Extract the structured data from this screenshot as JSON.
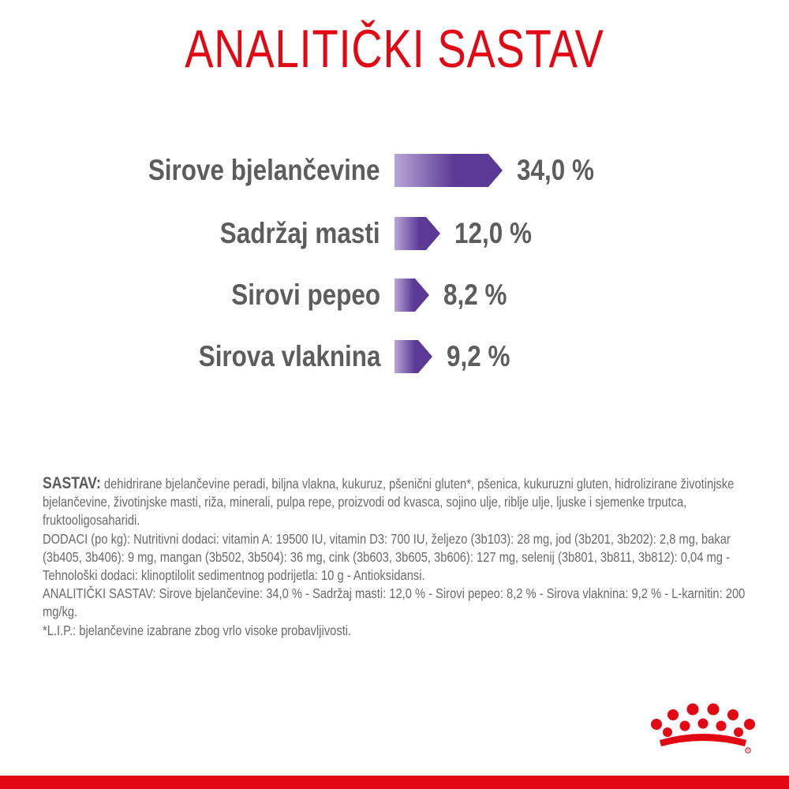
{
  "title": "ANALITIČKI SASTAV",
  "colors": {
    "title": "#e30613",
    "text": "#5d5d5d",
    "bar_start": "#b8a6d6",
    "bar_end": "#5b3a96",
    "footer_bar": "#e30613"
  },
  "analysis": [
    {
      "label": "Sirove bjelančevine",
      "value": "34,0 %",
      "percent": 34.0
    },
    {
      "label": "Sadržaj masti",
      "value": "12,0 %",
      "percent": 12.0
    },
    {
      "label": "Sirovi pepeo",
      "value": "8,2 %",
      "percent": 8.2
    },
    {
      "label": "Sirova vlaknina",
      "value": "9,2 %",
      "percent": 9.2
    }
  ],
  "composition": {
    "heading": "SASTAV:",
    "ingredients": "dehidrirane bjelančevine peradi, biljna vlakna, kukuruz, pšenični gluten*, pšenica, kukuruzni gluten, hidrolizirane životinjske bjelančevine, životinjske masti, riža, minerali, pulpa repe, proizvodi od kvasca, sojino ulje, riblje ulje, ljuske i sjemenke trputca, fruktooligosaharidi.",
    "additives": "DODACI (po kg): Nutritivni dodaci: vitamin A: 19500 IU, vitamin D3: 700 IU, željezo (3b103): 28 mg, jod (3b201, 3b202): 2,8 mg, bakar (3b405, 3b406): 9 mg, mangan (3b502, 3b504): 36 mg, cink (3b603, 3b605, 3b606): 127 mg, selenij (3b801, 3b811, 3b812): 0,04 mg - Tehnološki dodaci: klinoptilolit sedimentnog podrijetla: 10 g - Antioksidansi.",
    "analytical": "ANALITIČKI SASTAV: Sirove bjelančevine: 34,0 % - Sadržaj masti: 12,0 % - Sirovi pepeo: 8,2 % - Sirova vlaknina: 9,2 % - L-karnitin: 200 mg/kg.",
    "footnote": "*L.I.P.: bjelančevine izabrane zbog vrlo visoke probavljivosti."
  },
  "logo": {
    "icon": "crown-logo-icon"
  }
}
